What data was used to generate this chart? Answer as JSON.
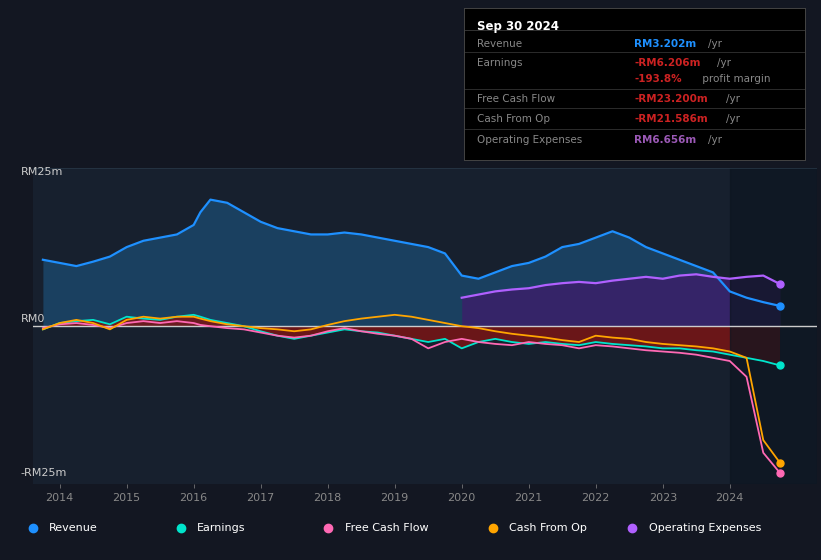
{
  "bg_color": "#131722",
  "plot_bg_color": "#17202e",
  "xlim": [
    2013.6,
    2025.3
  ],
  "ylim": [
    -25,
    25
  ],
  "x_ticks": [
    2014,
    2015,
    2016,
    2017,
    2018,
    2019,
    2020,
    2021,
    2022,
    2023,
    2024
  ],
  "info_box": {
    "date": "Sep 30 2024",
    "rows": [
      {
        "label": "Revenue",
        "value": "RM3.202m",
        "unit": "/yr",
        "value_color": "#1e90ff"
      },
      {
        "label": "Earnings",
        "value": "-RM6.206m",
        "unit": "/yr",
        "value_color": "#cc2222"
      },
      {
        "label": "",
        "value": "-193.8%",
        "unit": " profit margin",
        "value_color": "#cc2222"
      },
      {
        "label": "Free Cash Flow",
        "value": "-RM23.200m",
        "unit": "/yr",
        "value_color": "#cc2222"
      },
      {
        "label": "Cash From Op",
        "value": "-RM21.586m",
        "unit": "/yr",
        "value_color": "#cc2222"
      },
      {
        "label": "Operating Expenses",
        "value": "RM6.656m",
        "unit": "/yr",
        "value_color": "#9b59b6"
      }
    ]
  },
  "legend": [
    {
      "label": "Revenue",
      "color": "#1e90ff"
    },
    {
      "label": "Earnings",
      "color": "#00e5cc"
    },
    {
      "label": "Free Cash Flow",
      "color": "#ff69b4"
    },
    {
      "label": "Cash From Op",
      "color": "#ffa500"
    },
    {
      "label": "Operating Expenses",
      "color": "#b060ff"
    }
  ],
  "revenue_color_fill": "#1a4060",
  "revenue_color_line": "#1e90ff",
  "earnings_fill_neg": "#7a1515",
  "earnings_line": "#00e5cc",
  "fcf_line": "#ff69b4",
  "cop_line": "#ffa500",
  "op_line": "#b060ff",
  "op_fill": "#3a206a",
  "shaded_start": 2024.0,
  "series": {
    "years": [
      2013.75,
      2014.0,
      2014.25,
      2014.5,
      2014.75,
      2015.0,
      2015.25,
      2015.5,
      2015.75,
      2016.0,
      2016.1,
      2016.25,
      2016.5,
      2016.75,
      2017.0,
      2017.25,
      2017.5,
      2017.75,
      2018.0,
      2018.25,
      2018.5,
      2018.75,
      2019.0,
      2019.25,
      2019.5,
      2019.75,
      2020.0,
      2020.25,
      2020.5,
      2020.75,
      2021.0,
      2021.25,
      2021.5,
      2021.75,
      2022.0,
      2022.25,
      2022.5,
      2022.75,
      2023.0,
      2023.25,
      2023.5,
      2023.75,
      2024.0,
      2024.25,
      2024.5,
      2024.75
    ],
    "revenue": [
      10.5,
      10.0,
      9.5,
      10.2,
      11.0,
      12.5,
      13.5,
      14.0,
      14.5,
      16.0,
      18.0,
      20.0,
      19.5,
      18.0,
      16.5,
      15.5,
      15.0,
      14.5,
      14.5,
      14.8,
      14.5,
      14.0,
      13.5,
      13.0,
      12.5,
      11.5,
      8.0,
      7.5,
      8.5,
      9.5,
      10.0,
      11.0,
      12.5,
      13.0,
      14.0,
      15.0,
      14.0,
      12.5,
      11.5,
      10.5,
      9.5,
      8.5,
      5.5,
      4.5,
      3.8,
      3.2
    ],
    "earnings": [
      -0.5,
      0.5,
      0.8,
      1.0,
      0.3,
      1.5,
      1.2,
      1.0,
      1.5,
      1.8,
      1.5,
      1.0,
      0.5,
      0.0,
      -0.8,
      -1.5,
      -2.0,
      -1.5,
      -1.0,
      -0.5,
      -0.8,
      -1.0,
      -1.5,
      -2.0,
      -2.5,
      -2.0,
      -3.5,
      -2.5,
      -2.0,
      -2.5,
      -2.8,
      -2.5,
      -2.8,
      -3.0,
      -2.5,
      -2.8,
      -3.0,
      -3.2,
      -3.5,
      -3.5,
      -3.8,
      -4.0,
      -4.5,
      -5.0,
      -5.5,
      -6.2
    ],
    "free_cash_flow": [
      -0.3,
      0.3,
      0.5,
      0.2,
      -0.3,
      0.5,
      0.8,
      0.5,
      0.8,
      0.5,
      0.2,
      0.0,
      -0.3,
      -0.5,
      -1.0,
      -1.5,
      -1.8,
      -1.5,
      -0.8,
      -0.3,
      -0.8,
      -1.2,
      -1.5,
      -2.0,
      -3.5,
      -2.5,
      -2.0,
      -2.5,
      -2.8,
      -3.0,
      -2.5,
      -2.8,
      -3.0,
      -3.5,
      -3.0,
      -3.2,
      -3.5,
      -3.8,
      -4.0,
      -4.2,
      -4.5,
      -5.0,
      -5.5,
      -8.0,
      -20.0,
      -23.2
    ],
    "cash_from_op": [
      -0.5,
      0.5,
      1.0,
      0.5,
      -0.5,
      1.0,
      1.5,
      1.2,
      1.5,
      1.5,
      1.2,
      0.8,
      0.3,
      0.0,
      -0.3,
      -0.5,
      -0.8,
      -0.5,
      0.2,
      0.8,
      1.2,
      1.5,
      1.8,
      1.5,
      1.0,
      0.5,
      0.0,
      -0.3,
      -0.8,
      -1.2,
      -1.5,
      -1.8,
      -2.2,
      -2.5,
      -1.5,
      -1.8,
      -2.0,
      -2.5,
      -2.8,
      -3.0,
      -3.2,
      -3.5,
      -4.0,
      -5.0,
      -18.0,
      -21.6
    ],
    "op_expenses": [
      null,
      null,
      null,
      null,
      null,
      null,
      null,
      null,
      null,
      null,
      null,
      null,
      null,
      null,
      null,
      null,
      null,
      null,
      null,
      null,
      null,
      null,
      null,
      null,
      null,
      null,
      4.5,
      5.0,
      5.5,
      5.8,
      6.0,
      6.5,
      6.8,
      7.0,
      6.8,
      7.2,
      7.5,
      7.8,
      7.5,
      8.0,
      8.2,
      7.8,
      7.5,
      7.8,
      8.0,
      6.656
    ]
  }
}
